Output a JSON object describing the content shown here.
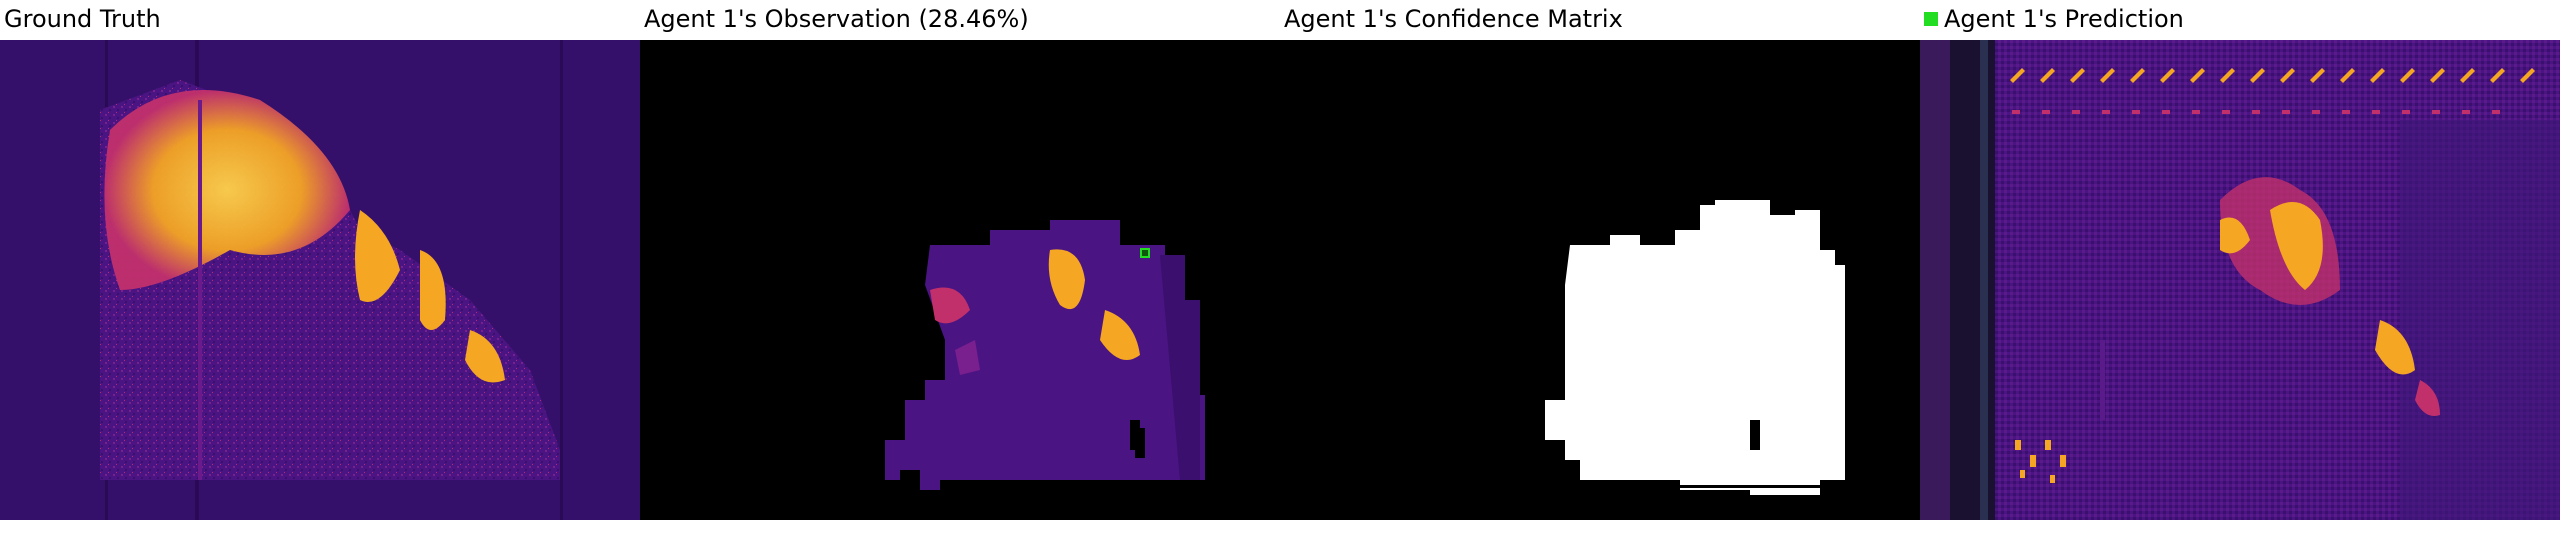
{
  "panels": [
    {
      "title": "Ground Truth"
    },
    {
      "title": "Agent 1's Observation (28.46%)"
    },
    {
      "title": "Agent 1's Confidence Matrix"
    },
    {
      "title": "Agent 1's Prediction"
    }
  ],
  "legend": {
    "swatch_color": "#22dd22",
    "marker_icon": "agent-position-marker"
  },
  "colors": {
    "background_dark": "#2a0a50",
    "background_mid": "#3b0f70",
    "heat_low": "#5a1a8a",
    "heat_mid": "#c2306c",
    "heat_high": "#f5a623",
    "heat_peak": "#ffd24a",
    "masked": "#000000",
    "confident": "#ffffff",
    "agent_marker": "#22dd22"
  }
}
